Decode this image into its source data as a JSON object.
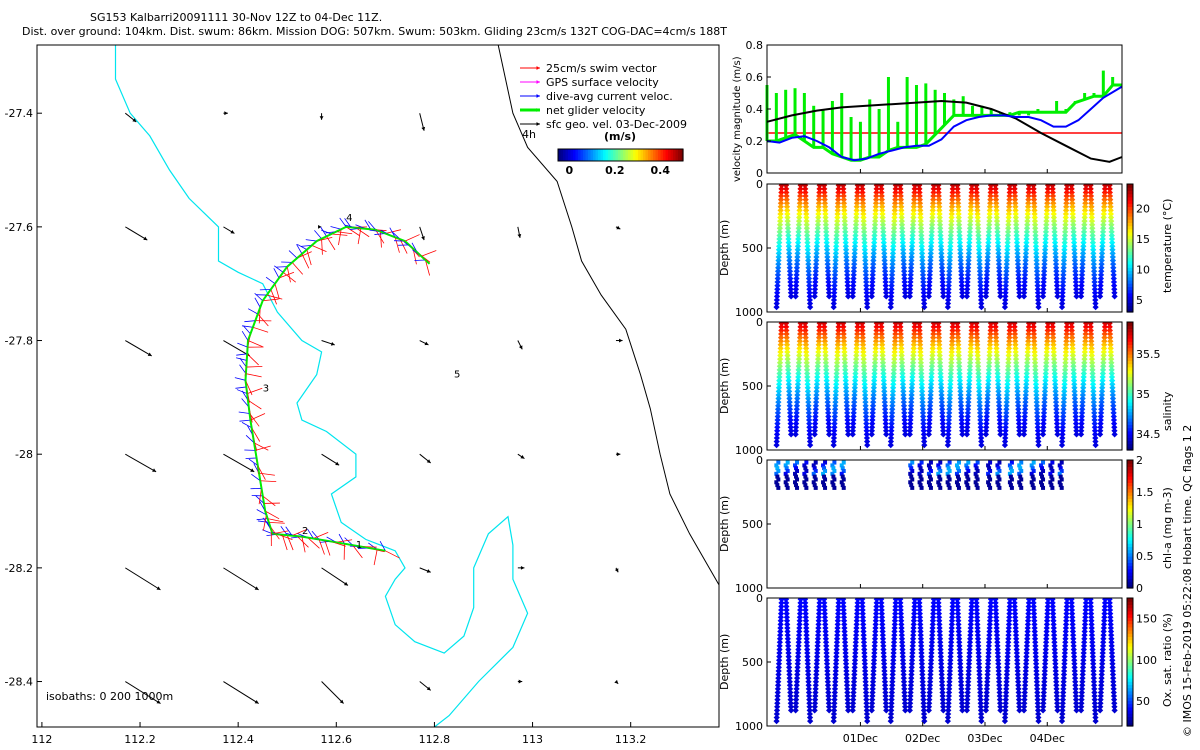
{
  "title": {
    "line1": "SG153 Kalbarri20091111 30-Nov 12Z to 04-Dec 11Z.",
    "line2": "Dist. over ground: 104km. Dist. swum: 86km. Mission DOG: 507km. Swum: 503km. Gliding 23cm/s 132T COG-DAC=4cm/s 188T"
  },
  "credit": "© IMOS 15-Feb-2019 05:22:08 Hobart time. QC flags 1  2",
  "colors": {
    "swim": "#ff0000",
    "gps": "#ff00ff",
    "dac": "#0000ff",
    "net": "#00ee00",
    "geo": "#000000",
    "isobath0": "#000000",
    "isobath200": "#00e5ee",
    "isobath1000": "#000000",
    "speed_ref": "#ff0000"
  },
  "chart_data": [
    {
      "type": "map",
      "id": "track-map",
      "xlim": [
        111.99,
        113.38
      ],
      "ylim": [
        -28.48,
        -27.28
      ],
      "x_ticks": [
        "112",
        "112.2",
        "112.4",
        "112.6",
        "112.8",
        "113",
        "113.2"
      ],
      "y_ticks": [
        "-27.4",
        "-27.6",
        "-27.8",
        "-28",
        "-28.2",
        "-28.4"
      ],
      "legend": {
        "position": "top-right",
        "entries": [
          "25cm/s swim vector",
          "GPS surface velocity",
          "dive-avg current veloc.",
          "net glider velocity",
          "sfc geo. vel. 03-Dec-2009"
        ],
        "note": "4h"
      },
      "colorbar": {
        "label": "(m/s)",
        "ticks": [
          "0",
          "0.2",
          "0.4"
        ],
        "range": [
          -0.05,
          0.5
        ]
      },
      "isobath_label": "isobaths: 0    200   1000m",
      "day_labels": [
        {
          "text": "1",
          "lon": 112.64,
          "lat": -28.165
        },
        {
          "text": "2",
          "lon": 112.53,
          "lat": -28.14
        },
        {
          "text": "3",
          "lon": 112.45,
          "lat": -27.89
        },
        {
          "text": "4",
          "lon": 112.62,
          "lat": -27.59
        },
        {
          "text": "5",
          "lon": 112.84,
          "lat": -27.865
        }
      ],
      "track_lonlat": [
        [
          112.7,
          -28.17
        ],
        [
          112.6,
          -28.155
        ],
        [
          112.53,
          -28.145
        ],
        [
          112.47,
          -28.14
        ],
        [
          112.455,
          -28.1
        ],
        [
          112.44,
          -28.02
        ],
        [
          112.425,
          -27.94
        ],
        [
          112.415,
          -27.87
        ],
        [
          112.42,
          -27.8
        ],
        [
          112.45,
          -27.73
        ],
        [
          112.5,
          -27.67
        ],
        [
          112.56,
          -27.625
        ],
        [
          112.62,
          -27.6
        ],
        [
          112.68,
          -27.605
        ],
        [
          112.74,
          -27.625
        ],
        [
          112.79,
          -27.665
        ]
      ],
      "coast_0m": [
        [
          112.93,
          -27.28
        ],
        [
          112.96,
          -27.4
        ],
        [
          112.99,
          -27.46
        ],
        [
          113.05,
          -27.52
        ],
        [
          113.08,
          -27.6
        ],
        [
          113.1,
          -27.66
        ],
        [
          113.14,
          -27.72
        ],
        [
          113.19,
          -27.78
        ],
        [
          113.22,
          -27.86
        ],
        [
          113.24,
          -27.92
        ],
        [
          113.26,
          -28.0
        ],
        [
          113.28,
          -28.07
        ],
        [
          113.32,
          -28.14
        ],
        [
          113.36,
          -28.2
        ],
        [
          113.38,
          -28.23
        ]
      ],
      "isobath_200m": [
        [
          112.15,
          -27.28
        ],
        [
          112.15,
          -27.34
        ],
        [
          112.18,
          -27.4
        ],
        [
          112.22,
          -27.44
        ],
        [
          112.26,
          -27.5
        ],
        [
          112.3,
          -27.55
        ],
        [
          112.36,
          -27.6
        ],
        [
          112.36,
          -27.66
        ],
        [
          112.4,
          -27.68
        ],
        [
          112.45,
          -27.7
        ],
        [
          112.48,
          -27.75
        ],
        [
          112.53,
          -27.8
        ],
        [
          112.57,
          -27.82
        ],
        [
          112.56,
          -27.86
        ],
        [
          112.52,
          -27.91
        ],
        [
          112.53,
          -27.94
        ],
        [
          112.58,
          -27.96
        ],
        [
          112.64,
          -28.0
        ],
        [
          112.64,
          -28.04
        ],
        [
          112.59,
          -28.07
        ],
        [
          112.61,
          -28.12
        ],
        [
          112.66,
          -28.15
        ],
        [
          112.72,
          -28.17
        ],
        [
          112.74,
          -28.2
        ],
        [
          112.72,
          -28.22
        ],
        [
          112.7,
          -28.25
        ],
        [
          112.72,
          -28.3
        ],
        [
          112.76,
          -28.33
        ],
        [
          112.82,
          -28.35
        ],
        [
          112.86,
          -28.32
        ],
        [
          112.88,
          -28.27
        ],
        [
          112.88,
          -28.2
        ],
        [
          112.91,
          -28.14
        ],
        [
          112.95,
          -28.11
        ],
        [
          112.96,
          -28.16
        ],
        [
          112.96,
          -28.22
        ],
        [
          112.99,
          -28.28
        ],
        [
          112.96,
          -28.34
        ],
        [
          112.89,
          -28.4
        ],
        [
          112.83,
          -28.46
        ],
        [
          112.8,
          -28.48
        ]
      ],
      "current_arrows": [
        {
          "lon": 112.17,
          "lat": -27.4,
          "u": 0.05,
          "v": -0.04
        },
        {
          "lon": 112.37,
          "lat": -27.4,
          "u": 0.02,
          "v": 0.0
        },
        {
          "lon": 112.57,
          "lat": -27.4,
          "u": 0.0,
          "v": -0.03
        },
        {
          "lon": 112.77,
          "lat": -27.4,
          "u": 0.02,
          "v": -0.08
        },
        {
          "lon": 112.17,
          "lat": -27.6,
          "u": 0.1,
          "v": -0.06
        },
        {
          "lon": 112.37,
          "lat": -27.6,
          "u": 0.05,
          "v": -0.03
        },
        {
          "lon": 112.57,
          "lat": -27.6,
          "u": 0.0,
          "v": 0.0
        },
        {
          "lon": 112.77,
          "lat": -27.6,
          "u": 0.02,
          "v": -0.06
        },
        {
          "lon": 112.97,
          "lat": -27.6,
          "u": 0.01,
          "v": -0.05
        },
        {
          "lon": 113.17,
          "lat": -27.6,
          "u": 0.02,
          "v": -0.01
        },
        {
          "lon": 112.17,
          "lat": -27.8,
          "u": 0.12,
          "v": -0.07
        },
        {
          "lon": 112.37,
          "lat": -27.8,
          "u": 0.12,
          "v": -0.07
        },
        {
          "lon": 112.57,
          "lat": -27.8,
          "u": 0.06,
          "v": -0.02
        },
        {
          "lon": 112.77,
          "lat": -27.8,
          "u": 0.04,
          "v": -0.02
        },
        {
          "lon": 112.97,
          "lat": -27.8,
          "u": 0.02,
          "v": -0.04
        },
        {
          "lon": 113.17,
          "lat": -27.8,
          "u": 0.03,
          "v": 0.0
        },
        {
          "lon": 112.17,
          "lat": -28.0,
          "u": 0.14,
          "v": -0.08
        },
        {
          "lon": 112.37,
          "lat": -28.0,
          "u": 0.14,
          "v": -0.08
        },
        {
          "lon": 112.57,
          "lat": -28.0,
          "u": 0.08,
          "v": -0.05
        },
        {
          "lon": 112.77,
          "lat": -28.0,
          "u": 0.05,
          "v": -0.04
        },
        {
          "lon": 112.97,
          "lat": -28.0,
          "u": 0.03,
          "v": -0.02
        },
        {
          "lon": 113.17,
          "lat": -28.0,
          "u": 0.02,
          "v": 0.0
        },
        {
          "lon": 112.17,
          "lat": -28.2,
          "u": 0.16,
          "v": -0.1
        },
        {
          "lon": 112.37,
          "lat": -28.2,
          "u": 0.16,
          "v": -0.1
        },
        {
          "lon": 112.57,
          "lat": -28.2,
          "u": 0.12,
          "v": -0.08
        },
        {
          "lon": 112.77,
          "lat": -28.2,
          "u": 0.05,
          "v": -0.02
        },
        {
          "lon": 112.97,
          "lat": -28.2,
          "u": 0.03,
          "v": 0.0
        },
        {
          "lon": 113.17,
          "lat": -28.2,
          "u": 0.01,
          "v": -0.02
        },
        {
          "lon": 112.17,
          "lat": -28.4,
          "u": 0.16,
          "v": -0.1
        },
        {
          "lon": 112.37,
          "lat": -28.4,
          "u": 0.16,
          "v": -0.1
        },
        {
          "lon": 112.57,
          "lat": -28.4,
          "u": 0.1,
          "v": -0.1
        },
        {
          "lon": 112.77,
          "lat": -28.4,
          "u": 0.05,
          "v": -0.04
        },
        {
          "lon": 112.97,
          "lat": -28.4,
          "u": 0.02,
          "v": 0.0
        },
        {
          "lon": 113.17,
          "lat": -28.4,
          "u": 0.01,
          "v": -0.01
        }
      ]
    },
    {
      "type": "line",
      "id": "velocity-panel",
      "ylabel": "velocity magnitude (m/s)",
      "ylim": [
        0,
        0.8
      ],
      "y_ticks": [
        "0",
        "0.2",
        "0.4",
        "0.6",
        "0.8"
      ],
      "x_range_days": [
        29.5,
        35.2
      ],
      "reference_speed": 0.25,
      "series": [
        {
          "key": "net",
          "color": "#00ee00",
          "x": [
            29.5,
            29.65,
            29.8,
            29.95,
            30.1,
            30.25,
            30.4,
            30.55,
            30.7,
            30.85,
            31.0,
            31.15,
            31.3,
            31.45,
            31.6,
            31.75,
            31.9,
            32.05,
            32.2,
            32.35,
            32.5,
            32.65,
            32.8,
            32.95,
            33.1,
            33.25,
            33.4,
            33.55,
            33.7,
            33.85,
            34.0,
            34.15,
            34.3,
            34.45,
            34.6,
            34.75,
            34.9,
            35.05,
            35.2
          ],
          "y": [
            0.2,
            0.2,
            0.22,
            0.24,
            0.2,
            0.16,
            0.16,
            0.12,
            0.1,
            0.08,
            0.08,
            0.1,
            0.1,
            0.14,
            0.16,
            0.16,
            0.16,
            0.18,
            0.24,
            0.3,
            0.36,
            0.36,
            0.36,
            0.36,
            0.36,
            0.36,
            0.36,
            0.38,
            0.38,
            0.38,
            0.38,
            0.38,
            0.38,
            0.44,
            0.46,
            0.48,
            0.48,
            0.55,
            0.55
          ],
          "peaks": [
            0.55,
            0.5,
            0.52,
            0.53,
            0.5,
            0.42,
            0.4,
            0.45,
            0.5,
            0.35,
            0.32,
            0.46,
            0.4,
            0.6,
            0.32,
            0.6,
            0.55,
            0.56,
            0.52,
            0.5,
            0.46,
            0.48,
            0.42,
            0.42,
            0.4,
            0.38,
            0.38,
            0.36,
            0.36,
            0.4,
            0.38,
            0.45,
            0.4,
            0.45,
            0.5,
            0.5,
            0.64,
            0.6,
            0.55
          ]
        },
        {
          "key": "geo",
          "color": "#000000",
          "x": [
            29.5,
            29.9,
            30.3,
            30.7,
            31.1,
            31.5,
            31.9,
            32.3,
            32.7,
            33.1,
            33.5,
            33.9,
            34.3,
            34.7,
            35.0,
            35.2
          ],
          "y": [
            0.32,
            0.36,
            0.39,
            0.41,
            0.42,
            0.43,
            0.44,
            0.45,
            0.44,
            0.4,
            0.34,
            0.25,
            0.17,
            0.09,
            0.07,
            0.1
          ]
        },
        {
          "key": "dac",
          "color": "#0000ff",
          "x": [
            29.5,
            29.7,
            29.9,
            30.1,
            30.3,
            30.5,
            30.7,
            30.9,
            31.1,
            31.3,
            31.5,
            31.7,
            31.9,
            32.1,
            32.3,
            32.5,
            32.7,
            32.9,
            33.1,
            33.3,
            33.5,
            33.7,
            33.9,
            34.1,
            34.3,
            34.5,
            34.7,
            34.9,
            35.2
          ],
          "y": [
            0.2,
            0.19,
            0.22,
            0.23,
            0.2,
            0.16,
            0.1,
            0.08,
            0.09,
            0.12,
            0.14,
            0.16,
            0.17,
            0.17,
            0.21,
            0.29,
            0.33,
            0.35,
            0.36,
            0.36,
            0.35,
            0.35,
            0.33,
            0.29,
            0.29,
            0.33,
            0.4,
            0.47,
            0.54
          ]
        }
      ]
    },
    {
      "type": "scatter",
      "id": "temperature-section",
      "ylabel": "Depth (m)",
      "colorbar_label": "temperature (°C)",
      "colorbar_ticks": [
        "5",
        "10",
        "15",
        "20"
      ],
      "colorbar_range": [
        3,
        24
      ],
      "ylim": [
        1000,
        0
      ],
      "y_ticks": [
        "0",
        "500",
        "1000"
      ],
      "n_profiles": 36,
      "max_depth_m": 900,
      "surface_value": 23,
      "deep_value": 5
    },
    {
      "type": "scatter",
      "id": "salinity-section",
      "ylabel": "Depth (m)",
      "colorbar_label": "salinity",
      "colorbar_ticks": [
        "34.5",
        "35",
        "35.5"
      ],
      "colorbar_range": [
        34.3,
        35.9
      ],
      "ylim": [
        1000,
        0
      ],
      "y_ticks": [
        "0",
        "500",
        "1000"
      ],
      "n_profiles": 36,
      "max_depth_m": 900,
      "surface_value": 35.8,
      "deep_value": 34.45
    },
    {
      "type": "scatter",
      "id": "chla-section",
      "ylabel": "Depth (m)",
      "colorbar_label": "chl-a (mg m-3)",
      "colorbar_ticks": [
        "0",
        "0.5",
        "1",
        "1.5",
        "2"
      ],
      "colorbar_range": [
        0,
        2
      ],
      "ylim": [
        1000,
        0
      ],
      "y_ticks": [
        "0",
        "500",
        "1000"
      ],
      "profiles_x_days": [
        29.65,
        29.8,
        29.95,
        30.1,
        30.25,
        30.4,
        30.55,
        30.7,
        31.8,
        31.95,
        32.1,
        32.25,
        32.4,
        32.55,
        32.7,
        32.85,
        33.05,
        33.2,
        33.4,
        33.55,
        33.75,
        33.9,
        34.05,
        34.2
      ]
    },
    {
      "type": "scatter",
      "id": "oxygen-section",
      "ylabel": "Depth (m)",
      "colorbar_label": "Ox. sat. ratio (%)",
      "colorbar_ticks": [
        "50",
        "100",
        "150"
      ],
      "colorbar_range": [
        20,
        175
      ],
      "ylim": [
        1000,
        0
      ],
      "y_ticks": [
        "0",
        "500",
        "1000"
      ],
      "n_profiles": 36,
      "max_depth_m": 900,
      "surface_value": 40,
      "deep_value": 35
    }
  ],
  "time_axis": {
    "ticks": [
      {
        "day": 31,
        "label": "01Dec"
      },
      {
        "day": 32,
        "label": "02Dec"
      },
      {
        "day": 33,
        "label": "03Dec"
      },
      {
        "day": 34,
        "label": "04Dec"
      }
    ]
  }
}
